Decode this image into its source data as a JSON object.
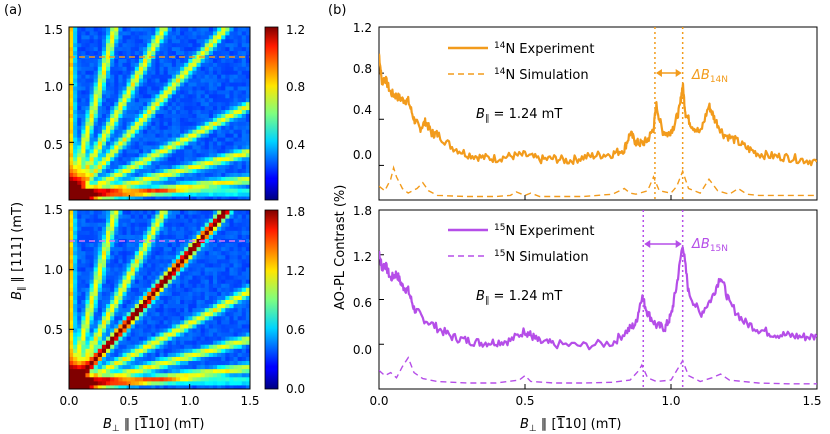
{
  "panel_labels": {
    "a": "(a)",
    "b": "(b)"
  },
  "colors": {
    "n14": "#f29b1c",
    "n15": "#b54ee8",
    "marker_n14": "#f29b1c",
    "marker_n15": "#d77cf0"
  },
  "chart_data": [
    {
      "type": "heatmap",
      "id": "a-top",
      "x_range": [
        0.0,
        1.5
      ],
      "y_range": [
        0.0,
        1.5
      ],
      "colorbar": {
        "min": 0.0,
        "max": 1.2,
        "ticks": [
          "0.4",
          "0.8",
          "1.2"
        ]
      },
      "y_ticks": [
        "0.5",
        "1.0",
        "1.5"
      ],
      "marker_line_y": 1.24,
      "branch_slopes": [
        3.9,
        1.9,
        1.15,
        0.55,
        0.28,
        0.12
      ]
    },
    {
      "type": "heatmap",
      "id": "a-bottom",
      "x_range": [
        0.0,
        1.5
      ],
      "y_range": [
        0.0,
        1.5
      ],
      "colorbar": {
        "min": 0.0,
        "max": 1.8,
        "ticks": [
          "0.0",
          "0.6",
          "1.2",
          "1.8"
        ]
      },
      "x_ticks": [
        "0.0",
        "0.5",
        "1.0",
        "1.5"
      ],
      "y_ticks": [
        "0.5",
        "1.0",
        "1.5"
      ],
      "xlabel_parts": {
        "sym": "B",
        "sub": "⊥",
        "rest": " ∥ [",
        "bar": "1",
        "tail": "10] (mT)"
      },
      "ylabel_parts": {
        "sym": "B",
        "sub": "∥",
        "rest": " ∥ [111] (mT)"
      },
      "marker_line_y": 1.24,
      "branch_slopes": [
        3.9,
        1.9,
        1.15,
        0.55,
        0.28,
        0.12
      ]
    },
    {
      "type": "line",
      "id": "b-top",
      "xlim": [
        0.0,
        1.5
      ],
      "ylim": [
        -0.3,
        1.2
      ],
      "y_ticks": [
        "0.0",
        "0.4",
        "0.8",
        "1.2"
      ],
      "legend": {
        "experiment": "N Experiment",
        "simulation": "N Simulation",
        "isotope": "14"
      },
      "field_label": {
        "sym": "B",
        "sub": "∥",
        "rest": " = 1.24 mT"
      },
      "delta_label": {
        "sym": "ΔB",
        "sub": "14N"
      },
      "vlines": [
        0.945,
        1.04
      ],
      "experiment": {
        "x": [
          0.0,
          0.01,
          0.02,
          0.04,
          0.06,
          0.08,
          0.1,
          0.12,
          0.14,
          0.16,
          0.18,
          0.2,
          0.25,
          0.3,
          0.35,
          0.4,
          0.45,
          0.5,
          0.55,
          0.6,
          0.65,
          0.7,
          0.75,
          0.8,
          0.84,
          0.86,
          0.88,
          0.9,
          0.92,
          0.94,
          0.95,
          0.97,
          0.99,
          1.01,
          1.03,
          1.04,
          1.05,
          1.07,
          1.1,
          1.13,
          1.15,
          1.18,
          1.22,
          1.26,
          1.3,
          1.35,
          1.4,
          1.45,
          1.5
        ],
        "y": [
          0.97,
          0.72,
          0.76,
          0.63,
          0.6,
          0.57,
          0.56,
          0.4,
          0.32,
          0.38,
          0.28,
          0.27,
          0.16,
          0.1,
          0.07,
          0.06,
          0.08,
          0.09,
          0.05,
          0.06,
          0.04,
          0.07,
          0.09,
          0.1,
          0.14,
          0.28,
          0.2,
          0.19,
          0.22,
          0.32,
          0.52,
          0.3,
          0.27,
          0.34,
          0.5,
          0.7,
          0.45,
          0.35,
          0.28,
          0.52,
          0.4,
          0.27,
          0.22,
          0.15,
          0.1,
          0.08,
          0.07,
          0.05,
          0.03
        ]
      },
      "simulation": {
        "x": [
          0.0,
          0.02,
          0.04,
          0.05,
          0.06,
          0.08,
          0.1,
          0.13,
          0.15,
          0.17,
          0.2,
          0.3,
          0.4,
          0.45,
          0.47,
          0.5,
          0.52,
          0.55,
          0.6,
          0.7,
          0.8,
          0.84,
          0.86,
          0.88,
          0.92,
          0.94,
          0.96,
          1.0,
          1.02,
          1.04,
          1.06,
          1.1,
          1.13,
          1.16,
          1.2,
          1.23,
          1.26,
          1.3,
          1.4,
          1.5
        ],
        "y": [
          -0.18,
          -0.22,
          -0.12,
          -0.02,
          -0.1,
          -0.2,
          -0.24,
          -0.2,
          -0.15,
          -0.22,
          -0.26,
          -0.27,
          -0.27,
          -0.26,
          -0.23,
          -0.26,
          -0.24,
          -0.27,
          -0.27,
          -0.27,
          -0.25,
          -0.2,
          -0.24,
          -0.25,
          -0.22,
          -0.1,
          -0.22,
          -0.24,
          -0.18,
          -0.05,
          -0.2,
          -0.24,
          -0.12,
          -0.22,
          -0.25,
          -0.2,
          -0.25,
          -0.26,
          -0.26,
          -0.26
        ]
      }
    },
    {
      "type": "line",
      "id": "b-bottom",
      "xlim": [
        0.0,
        1.5
      ],
      "ylim": [
        -0.6,
        1.8
      ],
      "x_ticks": [
        "0.0",
        "0.5",
        "1.0",
        "1.5"
      ],
      "y_ticks": [
        "0.0",
        "0.6",
        "1.2",
        "1.8"
      ],
      "ylabel": "AO-PL Contrast (%)",
      "xlabel_parts": {
        "sym": "B",
        "sub": "⊥",
        "rest": " ∥ [",
        "bar": "1",
        "tail": "10] (mT)"
      },
      "legend": {
        "experiment": "N Experiment",
        "simulation": "N Simulation",
        "isotope": "15"
      },
      "field_label": {
        "sym": "B",
        "sub": "∥",
        "rest": " = 1.24 mT"
      },
      "delta_label": {
        "sym": "ΔB",
        "sub": "15N"
      },
      "vlines": [
        0.905,
        1.04
      ],
      "experiment": {
        "x": [
          0.0,
          0.01,
          0.02,
          0.04,
          0.06,
          0.08,
          0.1,
          0.12,
          0.15,
          0.2,
          0.25,
          0.3,
          0.35,
          0.4,
          0.45,
          0.5,
          0.52,
          0.55,
          0.6,
          0.7,
          0.8,
          0.85,
          0.88,
          0.9,
          0.92,
          0.95,
          0.98,
          1.0,
          1.02,
          1.04,
          1.06,
          1.1,
          1.14,
          1.17,
          1.2,
          1.25,
          1.3,
          1.35,
          1.4,
          1.45,
          1.5
        ],
        "y": [
          1.25,
          1.02,
          1.08,
          0.88,
          0.95,
          0.78,
          0.72,
          0.48,
          0.35,
          0.22,
          0.1,
          0.05,
          0.02,
          0.03,
          0.05,
          0.18,
          0.12,
          0.03,
          0.0,
          -0.02,
          0.02,
          0.18,
          0.28,
          0.65,
          0.42,
          0.25,
          0.22,
          0.38,
          0.8,
          1.35,
          0.7,
          0.4,
          0.62,
          0.92,
          0.55,
          0.3,
          0.2,
          0.14,
          0.12,
          0.1,
          0.1
        ]
      },
      "simulation": {
        "x": [
          0.0,
          0.02,
          0.04,
          0.06,
          0.08,
          0.1,
          0.12,
          0.15,
          0.2,
          0.3,
          0.4,
          0.48,
          0.5,
          0.52,
          0.6,
          0.7,
          0.8,
          0.86,
          0.89,
          0.9,
          0.92,
          0.95,
          1.0,
          1.02,
          1.04,
          1.06,
          1.1,
          1.14,
          1.17,
          1.2,
          1.3,
          1.4,
          1.5
        ],
        "y": [
          -0.35,
          -0.42,
          -0.38,
          -0.45,
          -0.3,
          -0.18,
          -0.38,
          -0.46,
          -0.5,
          -0.52,
          -0.52,
          -0.48,
          -0.42,
          -0.5,
          -0.52,
          -0.52,
          -0.51,
          -0.48,
          -0.35,
          -0.28,
          -0.45,
          -0.5,
          -0.48,
          -0.35,
          -0.22,
          -0.42,
          -0.5,
          -0.45,
          -0.4,
          -0.48,
          -0.52,
          -0.53,
          -0.53
        ]
      }
    }
  ]
}
